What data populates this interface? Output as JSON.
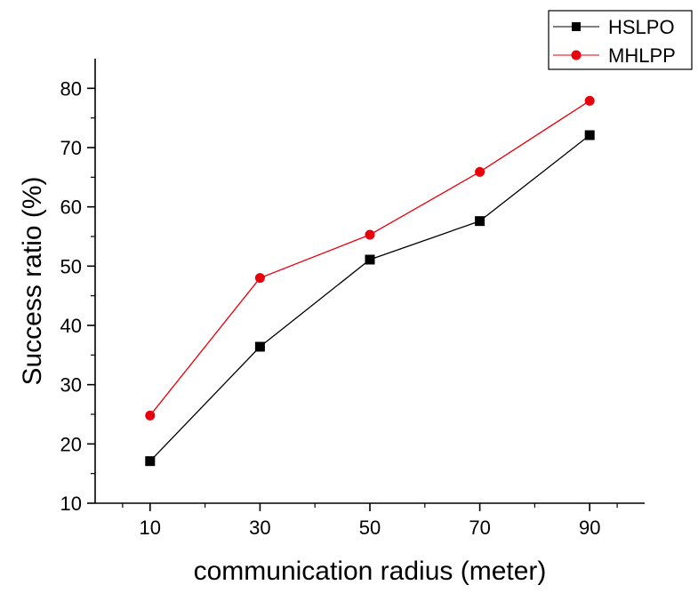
{
  "chart_data": {
    "type": "line",
    "title": "",
    "xlabel": "communication radius (meter)",
    "ylabel": "Success ratio (%)",
    "x": [
      10,
      30,
      50,
      70,
      90
    ],
    "xlim": [
      0,
      100
    ],
    "ylim": [
      10,
      85
    ],
    "xticks": [
      10,
      30,
      50,
      70,
      90
    ],
    "yticks": [
      10,
      20,
      30,
      40,
      50,
      60,
      70,
      80
    ],
    "grid": false,
    "legend_position": "top-right",
    "series": [
      {
        "name": "HSLPO",
        "values": [
          17.1,
          36.4,
          51.1,
          57.6,
          72.1
        ],
        "color": "#000000",
        "marker": "square"
      },
      {
        "name": "MHLPP",
        "values": [
          24.8,
          48.0,
          55.3,
          65.9,
          77.9
        ],
        "color": "#e8000b",
        "marker": "circle"
      }
    ]
  }
}
